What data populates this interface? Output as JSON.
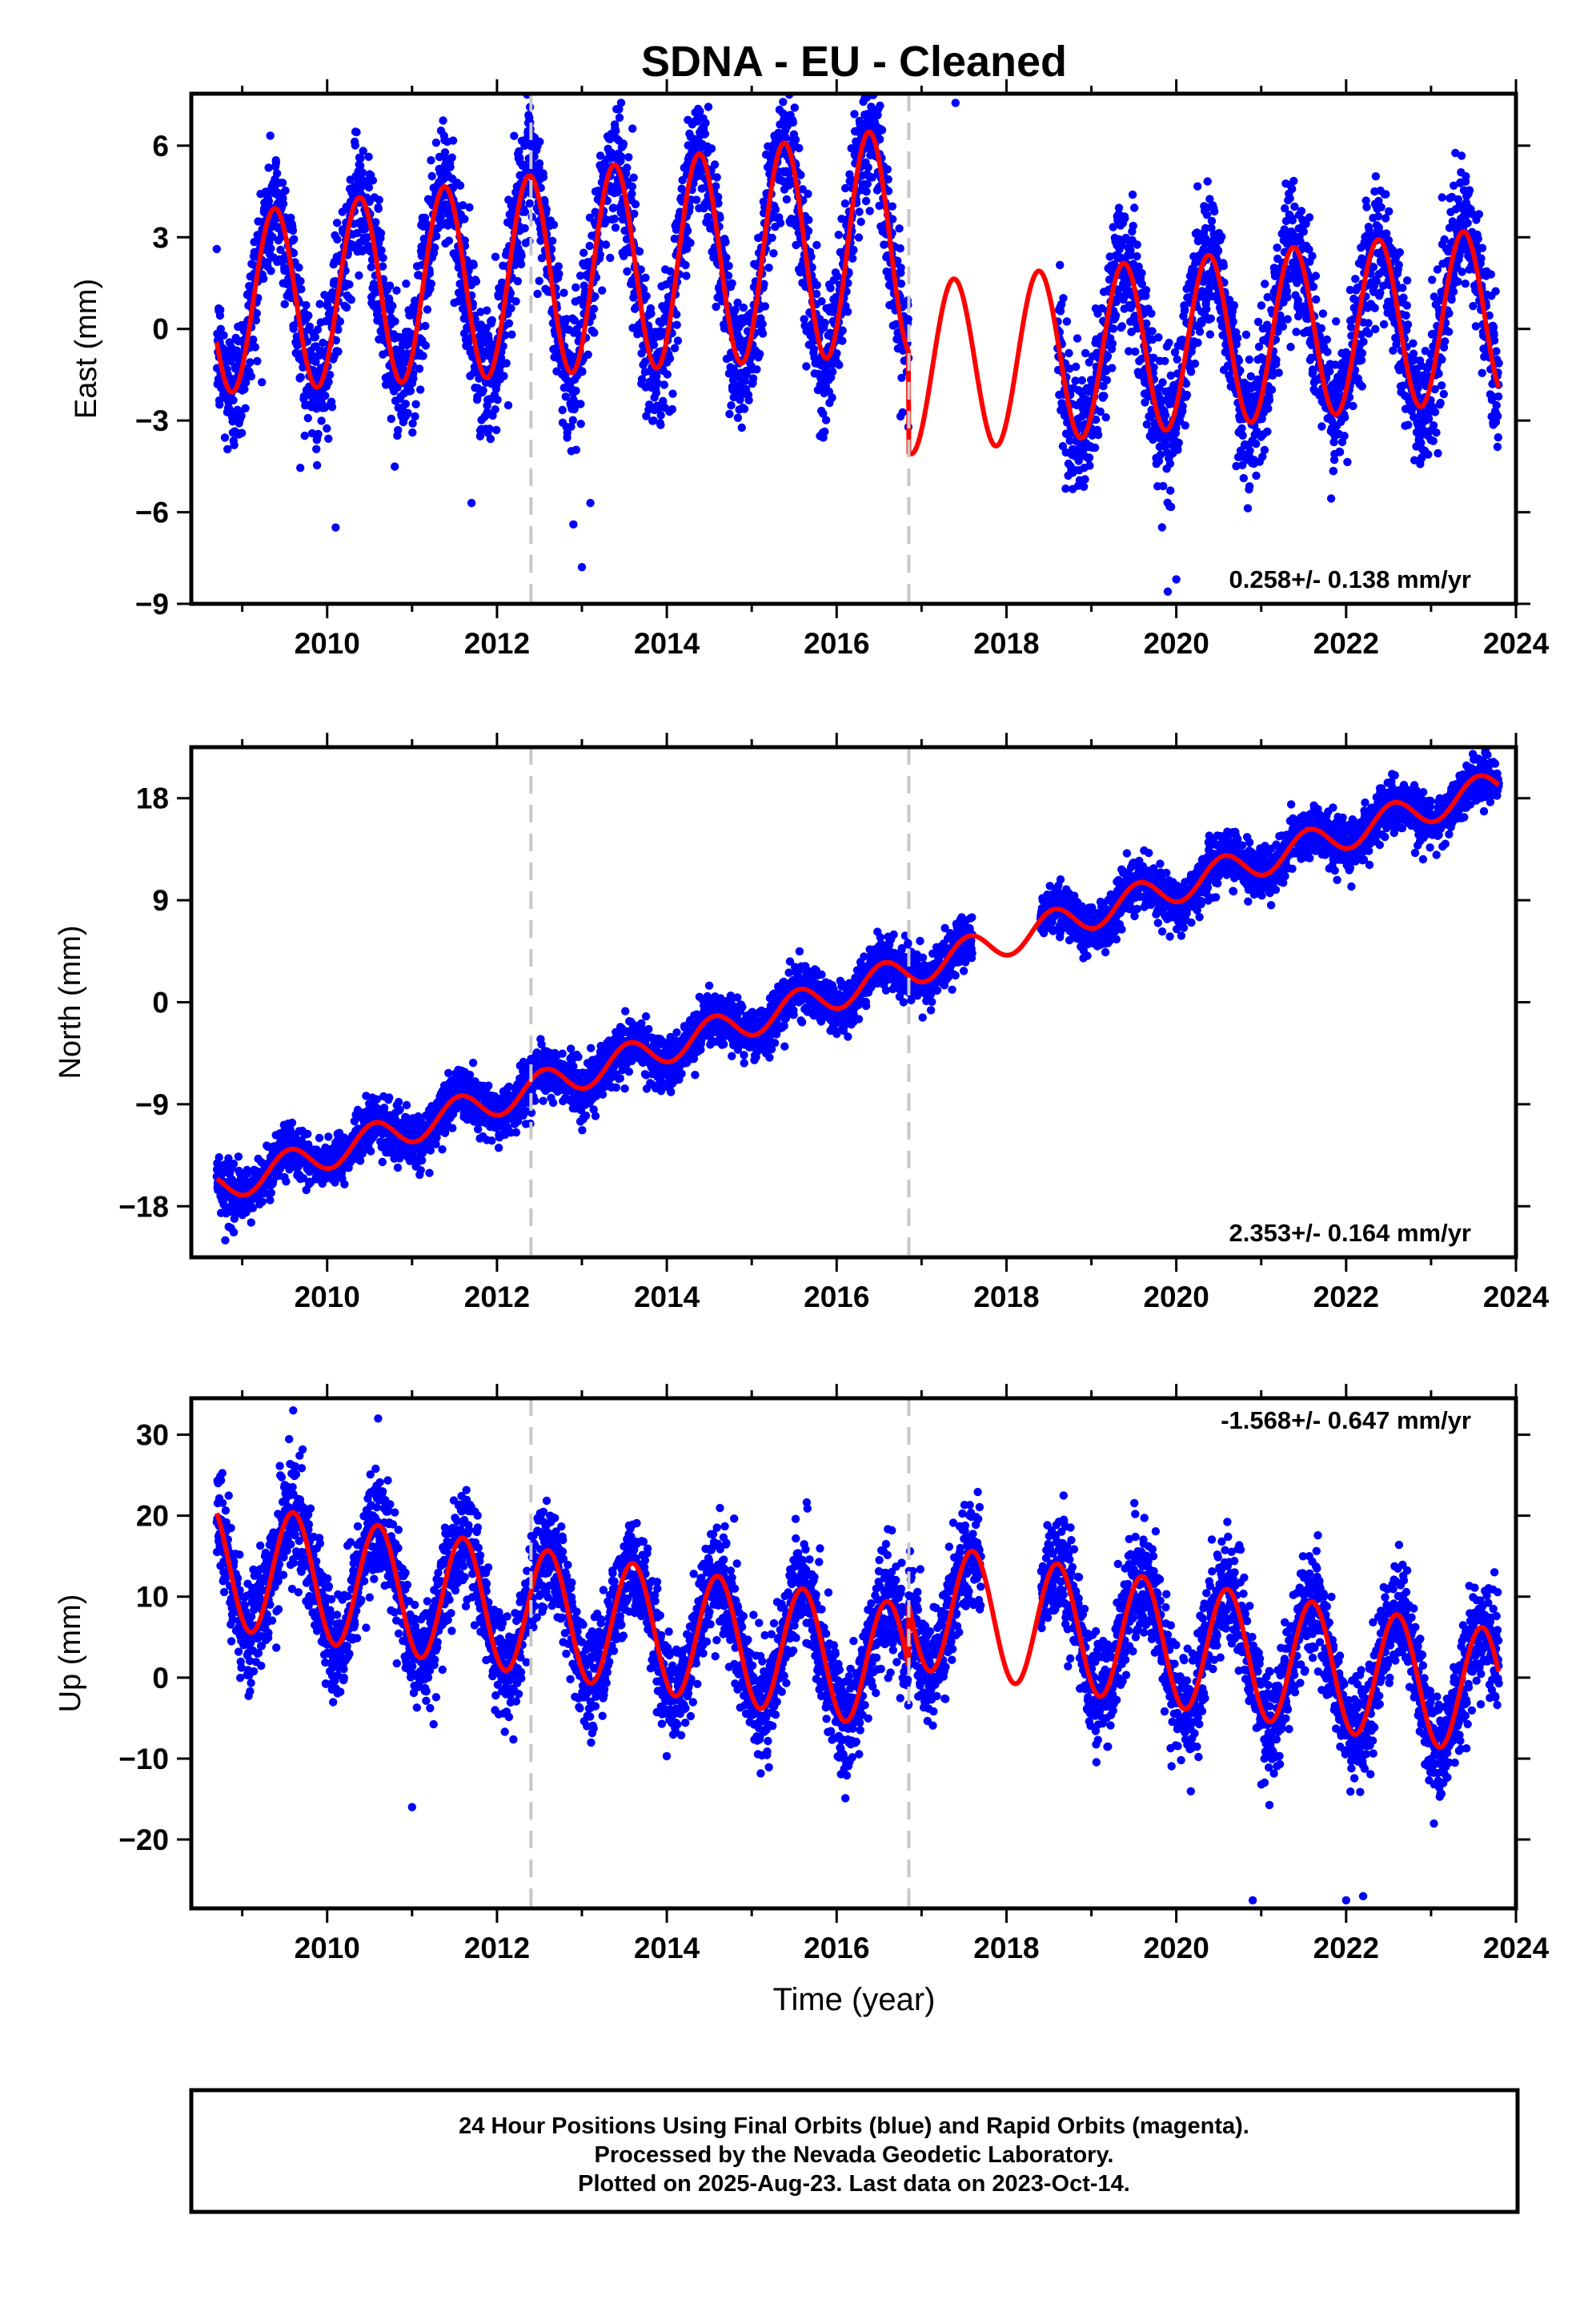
{
  "title": "SDNA  - EU - Cleaned",
  "xlabel": "Time (year)",
  "footer": [
    "24 Hour Positions Using Final Orbits (blue) and Rapid Orbits (magenta).",
    "Processed by the Nevada Geodetic Laboratory.",
    "Plotted on 2025-Aug-23. Last data on 2023-Oct-14."
  ],
  "colors": {
    "points": "#0000ff",
    "model": "#ff0000",
    "breaks": "#c8c8c8",
    "frame": "#000000"
  },
  "chart_data": [
    {
      "type": "scatter",
      "ylabel": "East (mm)",
      "rate": "0.258+/- 0.138 mm/yr",
      "xlim": [
        2008.4,
        2024.0
      ],
      "ylim": [
        -9,
        7.7
      ],
      "xticks": [
        2010,
        2012,
        2014,
        2016,
        2018,
        2020,
        2022,
        2024
      ],
      "yticks": [
        6,
        3,
        0,
        -3,
        -6,
        -9
      ],
      "yticklabels": [
        "6",
        "3",
        "0",
        "−3",
        "−6",
        "−9"
      ],
      "breaks": [
        2012.4,
        2016.85
      ],
      "data_range": [
        2008.7,
        2023.8
      ],
      "gaps": [
        [
          2016.85,
          2018.6
        ]
      ],
      "series": [
        {
          "name": "Final Orbits (blue)"
        },
        {
          "name": "model"
        }
      ],
      "model": {
        "segments": [
          {
            "from": 2008.7,
            "to": 2016.85,
            "offset": 0.8,
            "rate": 0.258,
            "amp": 2.9,
            "amp_drift": 0.1,
            "peak": 0.38
          },
          {
            "from": 2016.85,
            "to": 2023.8,
            "offset": -1.3,
            "rate": 0.258,
            "amp": 2.8,
            "amp_drift": 0.0,
            "peak": 0.38
          }
        ],
        "scatter_sd": 1.1
      },
      "outliers": [
        [
          2010.1,
          -6.5
        ],
        [
          2012.9,
          -6.4
        ],
        [
          2013.0,
          -7.8
        ],
        [
          2013.1,
          -5.7
        ],
        [
          2011.7,
          -5.7
        ],
        [
          2017.4,
          7.4
        ],
        [
          2019.9,
          -8.6
        ],
        [
          2020.0,
          -8.2
        ]
      ]
    },
    {
      "type": "scatter",
      "ylabel": "North (mm)",
      "rate": "2.353+/- 0.164 mm/yr",
      "xlim": [
        2008.4,
        2024.0
      ],
      "ylim": [
        -22.5,
        22.5
      ],
      "xticks": [
        2010,
        2012,
        2014,
        2016,
        2018,
        2020,
        2022,
        2024
      ],
      "yticks": [
        18,
        9,
        0,
        -9,
        -18
      ],
      "yticklabels": [
        "18",
        "9",
        "0",
        "−9",
        "−18"
      ],
      "breaks": [
        2012.4,
        2016.85
      ],
      "data_range": [
        2008.7,
        2023.8
      ],
      "gaps": [
        [
          2017.6,
          2018.4
        ]
      ],
      "series": [
        {
          "name": "Final Orbits (blue)"
        },
        {
          "name": "model"
        }
      ],
      "model": {
        "segments": [
          {
            "from": 2008.7,
            "to": 2023.8,
            "offset": -16.4,
            "rate": 2.353,
            "amp": 1.4,
            "amp_drift": 0.0,
            "peak": 0.55
          }
        ],
        "scatter_sd": 1.1
      },
      "outliers": [
        [
          2008.8,
          -21.0
        ],
        [
          2008.9,
          -20.3
        ]
      ]
    },
    {
      "type": "scatter",
      "ylabel": "Up (mm)",
      "rate": "-1.568+/- 0.647 mm/yr",
      "xlim": [
        2008.4,
        2024.0
      ],
      "ylim": [
        -28.5,
        34.5
      ],
      "xticks": [
        2010,
        2012,
        2014,
        2016,
        2018,
        2020,
        2022,
        2024
      ],
      "yticks": [
        30,
        20,
        10,
        0,
        -10,
        -20
      ],
      "yticklabels": [
        "30",
        "20",
        "10",
        "0",
        "−10",
        "−20"
      ],
      "breaks": [
        2012.4,
        2016.85
      ],
      "data_range": [
        2008.7,
        2023.8
      ],
      "gaps": [
        [
          2017.7,
          2018.4
        ]
      ],
      "series": [
        {
          "name": "Final Orbits (blue)"
        },
        {
          "name": "model"
        }
      ],
      "model": {
        "segments": [
          {
            "from": 2008.7,
            "to": 2016.85,
            "offset": 14.0,
            "rate": -1.568,
            "amp": 7.8,
            "amp_drift": 0.0,
            "peak": 0.6
          },
          {
            "from": 2016.85,
            "to": 2023.8,
            "offset": 9.0,
            "rate": -1.568,
            "amp": 7.8,
            "amp_drift": 0.0,
            "peak": 0.6
          }
        ],
        "scatter_sd": 3.3
      },
      "outliers": [
        [
          2009.6,
          33.0
        ],
        [
          2010.6,
          32.0
        ],
        [
          2011.0,
          -16.0
        ],
        [
          2020.9,
          -27.5
        ],
        [
          2022.0,
          -27.5
        ],
        [
          2022.2,
          -27.0
        ]
      ]
    }
  ]
}
